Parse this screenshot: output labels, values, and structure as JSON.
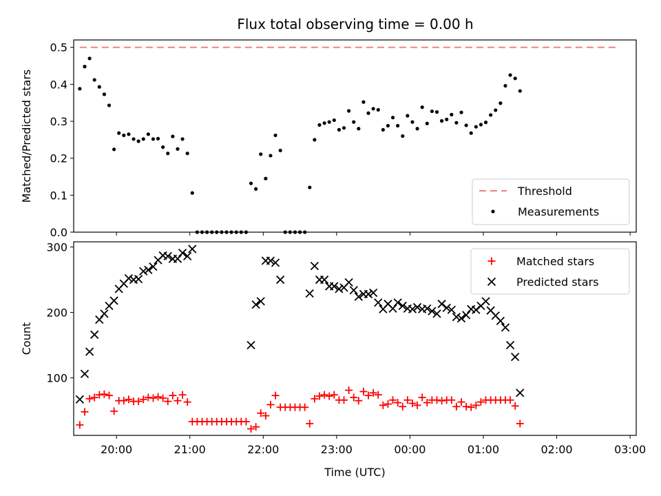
{
  "title": "Flux total observing time = 0.00 h",
  "chart_data": [
    {
      "type": "scatter",
      "ylabel": "Matched/Predicted stars",
      "ylim": [
        0,
        0.52
      ],
      "yticks": [
        0.0,
        0.1,
        0.2,
        0.3,
        0.4,
        0.5
      ],
      "ytick_labels": [
        "0.0",
        "0.1",
        "0.2",
        "0.3",
        "0.4",
        "0.5"
      ],
      "xlim": [
        "19:25",
        "03:05"
      ],
      "legend_position": "lower-right",
      "threshold": {
        "name": "Threshold",
        "value": 0.5,
        "x": [
          "19:30",
          "02:50"
        ],
        "color": "#f28080"
      },
      "series": [
        {
          "name": "Measurements",
          "color": "#000000",
          "points": [
            [
              "19:30",
              0.388
            ],
            [
              "19:34",
              0.448
            ],
            [
              "19:38",
              0.47
            ],
            [
              "19:42",
              0.412
            ],
            [
              "19:46",
              0.393
            ],
            [
              "19:50",
              0.373
            ],
            [
              "19:54",
              0.343
            ],
            [
              "19:58",
              0.224
            ],
            [
              "20:02",
              0.268
            ],
            [
              "20:06",
              0.262
            ],
            [
              "20:10",
              0.265
            ],
            [
              "20:14",
              0.252
            ],
            [
              "20:18",
              0.246
            ],
            [
              "20:22",
              0.252
            ],
            [
              "20:26",
              0.265
            ],
            [
              "20:30",
              0.252
            ],
            [
              "20:34",
              0.253
            ],
            [
              "20:38",
              0.23
            ],
            [
              "20:42",
              0.213
            ],
            [
              "20:46",
              0.259
            ],
            [
              "20:50",
              0.225
            ],
            [
              "20:54",
              0.252
            ],
            [
              "20:58",
              0.213
            ],
            [
              "21:02",
              0.106
            ],
            [
              "21:06",
              0.0
            ],
            [
              "21:10",
              0.0
            ],
            [
              "21:14",
              0.0
            ],
            [
              "21:18",
              0.0
            ],
            [
              "21:22",
              0.0
            ],
            [
              "21:26",
              0.0
            ],
            [
              "21:30",
              0.0
            ],
            [
              "21:34",
              0.0
            ],
            [
              "21:38",
              0.0
            ],
            [
              "21:42",
              0.0
            ],
            [
              "21:46",
              0.0
            ],
            [
              "21:50",
              0.132
            ],
            [
              "21:54",
              0.117
            ],
            [
              "21:58",
              0.211
            ],
            [
              "22:02",
              0.145
            ],
            [
              "22:06",
              0.207
            ],
            [
              "22:10",
              0.262
            ],
            [
              "22:14",
              0.221
            ],
            [
              "22:18",
              0.0
            ],
            [
              "22:22",
              0.0
            ],
            [
              "22:26",
              0.0
            ],
            [
              "22:30",
              0.0
            ],
            [
              "22:34",
              0.0
            ],
            [
              "22:38",
              0.121
            ],
            [
              "22:42",
              0.25
            ],
            [
              "22:46",
              0.29
            ],
            [
              "22:50",
              0.295
            ],
            [
              "22:54",
              0.298
            ],
            [
              "22:58",
              0.303
            ],
            [
              "23:02",
              0.277
            ],
            [
              "23:06",
              0.282
            ],
            [
              "23:10",
              0.328
            ],
            [
              "23:14",
              0.298
            ],
            [
              "23:18",
              0.28
            ],
            [
              "23:22",
              0.352
            ],
            [
              "23:26",
              0.322
            ],
            [
              "23:30",
              0.334
            ],
            [
              "23:34",
              0.331
            ],
            [
              "23:38",
              0.277
            ],
            [
              "23:42",
              0.288
            ],
            [
              "23:46",
              0.31
            ],
            [
              "23:50",
              0.288
            ],
            [
              "23:54",
              0.26
            ],
            [
              "23:58",
              0.315
            ],
            [
              "00:02",
              0.298
            ],
            [
              "00:06",
              0.28
            ],
            [
              "00:10",
              0.338
            ],
            [
              "00:14",
              0.294
            ],
            [
              "00:18",
              0.327
            ],
            [
              "00:22",
              0.325
            ],
            [
              "00:26",
              0.301
            ],
            [
              "00:30",
              0.305
            ],
            [
              "00:34",
              0.318
            ],
            [
              "00:38",
              0.296
            ],
            [
              "00:42",
              0.324
            ],
            [
              "00:46",
              0.289
            ],
            [
              "00:50",
              0.268
            ],
            [
              "00:54",
              0.285
            ],
            [
              "00:58",
              0.291
            ],
            [
              "01:02",
              0.297
            ],
            [
              "01:06",
              0.317
            ],
            [
              "01:10",
              0.33
            ],
            [
              "01:14",
              0.349
            ],
            [
              "01:18",
              0.396
            ],
            [
              "01:22",
              0.425
            ],
            [
              "01:26",
              0.416
            ],
            [
              "01:30",
              0.382
            ]
          ]
        }
      ]
    },
    {
      "type": "scatter",
      "xlabel": "Time (UTC)",
      "ylabel": "Count",
      "ylim": [
        12,
        308
      ],
      "yticks": [
        100,
        200,
        300
      ],
      "ytick_labels": [
        "100",
        "200",
        "300"
      ],
      "xlim": [
        "19:25",
        "03:05"
      ],
      "xticks": [
        "20:00",
        "21:00",
        "22:00",
        "23:00",
        "00:00",
        "01:00",
        "02:00",
        "03:00"
      ],
      "xtick_labels": [
        "20:00",
        "21:00",
        "22:00",
        "23:00",
        "00:00",
        "01:00",
        "02:00",
        "03:00"
      ],
      "legend_position": "upper-right",
      "series": [
        {
          "name": "Matched stars",
          "color": "#ff0000",
          "marker": "+",
          "points": [
            [
              "19:30",
              28
            ],
            [
              "19:34",
              48
            ],
            [
              "19:38",
              68
            ],
            [
              "19:42",
              70
            ],
            [
              "19:46",
              74
            ],
            [
              "19:50",
              75
            ],
            [
              "19:54",
              73
            ],
            [
              "19:58",
              49
            ],
            [
              "20:02",
              65
            ],
            [
              "20:06",
              65
            ],
            [
              "20:10",
              67
            ],
            [
              "20:14",
              64
            ],
            [
              "20:18",
              64
            ],
            [
              "20:22",
              67
            ],
            [
              "20:26",
              70
            ],
            [
              "20:30",
              69
            ],
            [
              "20:34",
              71
            ],
            [
              "20:38",
              69
            ],
            [
              "20:42",
              64
            ],
            [
              "20:46",
              73
            ],
            [
              "20:50",
              65
            ],
            [
              "20:54",
              74
            ],
            [
              "20:58",
              63
            ],
            [
              "21:02",
              33
            ],
            [
              "21:06",
              33
            ],
            [
              "21:10",
              33
            ],
            [
              "21:14",
              33
            ],
            [
              "21:18",
              33
            ],
            [
              "21:22",
              33
            ],
            [
              "21:26",
              33
            ],
            [
              "21:30",
              33
            ],
            [
              "21:34",
              33
            ],
            [
              "21:38",
              33
            ],
            [
              "21:42",
              33
            ],
            [
              "21:46",
              33
            ],
            [
              "21:50",
              22
            ],
            [
              "21:54",
              25
            ],
            [
              "21:58",
              46
            ],
            [
              "22:02",
              42
            ],
            [
              "22:06",
              59
            ],
            [
              "22:10",
              73
            ],
            [
              "22:14",
              55
            ],
            [
              "22:18",
              55
            ],
            [
              "22:22",
              55
            ],
            [
              "22:26",
              55
            ],
            [
              "22:30",
              55
            ],
            [
              "22:34",
              55
            ],
            [
              "22:38",
              30
            ],
            [
              "22:42",
              68
            ],
            [
              "22:46",
              72
            ],
            [
              "22:50",
              74
            ],
            [
              "22:54",
              72
            ],
            [
              "22:58",
              74
            ],
            [
              "23:02",
              66
            ],
            [
              "23:06",
              66
            ],
            [
              "23:10",
              81
            ],
            [
              "23:14",
              70
            ],
            [
              "23:18",
              65
            ],
            [
              "23:22",
              79
            ],
            [
              "23:26",
              73
            ],
            [
              "23:30",
              77
            ],
            [
              "23:34",
              74
            ],
            [
              "23:38",
              58
            ],
            [
              "23:42",
              60
            ],
            [
              "23:46",
              66
            ],
            [
              "23:50",
              62
            ],
            [
              "23:54",
              56
            ],
            [
              "23:58",
              66
            ],
            [
              "00:02",
              61
            ],
            [
              "00:06",
              58
            ],
            [
              "00:10",
              70
            ],
            [
              "00:14",
              62
            ],
            [
              "00:18",
              66
            ],
            [
              "00:22",
              66
            ],
            [
              "00:26",
              65
            ],
            [
              "00:30",
              66
            ],
            [
              "00:34",
              66
            ],
            [
              "00:38",
              56
            ],
            [
              "00:42",
              63
            ],
            [
              "00:46",
              56
            ],
            [
              "00:50",
              55
            ],
            [
              "00:54",
              58
            ],
            [
              "00:58",
              63
            ],
            [
              "01:02",
              66
            ],
            [
              "01:06",
              66
            ],
            [
              "01:10",
              66
            ],
            [
              "01:14",
              66
            ],
            [
              "01:18",
              66
            ],
            [
              "01:22",
              66
            ],
            [
              "01:26",
              57
            ],
            [
              "01:30",
              30
            ]
          ]
        },
        {
          "name": "Predicted stars",
          "color": "#000000",
          "marker": "x",
          "points": [
            [
              "19:30",
              67
            ],
            [
              "19:34",
              106
            ],
            [
              "19:38",
              140
            ],
            [
              "19:42",
              166
            ],
            [
              "19:46",
              189
            ],
            [
              "19:50",
              198
            ],
            [
              "19:54",
              210
            ],
            [
              "19:58",
              218
            ],
            [
              "20:02",
              236
            ],
            [
              "20:06",
              244
            ],
            [
              "20:10",
              252
            ],
            [
              "20:14",
              250
            ],
            [
              "20:18",
              251
            ],
            [
              "20:22",
              263
            ],
            [
              "20:26",
              265
            ],
            [
              "20:30",
              270
            ],
            [
              "20:34",
              280
            ],
            [
              "20:38",
              287
            ],
            [
              "20:42",
              286
            ],
            [
              "20:46",
              282
            ],
            [
              "20:50",
              282
            ],
            [
              "20:54",
              291
            ],
            [
              "20:58",
              286
            ],
            [
              "21:02",
              297
            ],
            [
              "21:50",
              150
            ],
            [
              "21:54",
              212
            ],
            [
              "21:58",
              217
            ],
            [
              "22:02",
              279
            ],
            [
              "22:06",
              279
            ],
            [
              "22:10",
              276
            ],
            [
              "22:14",
              250
            ],
            [
              "22:38",
              229
            ],
            [
              "22:42",
              271
            ],
            [
              "22:46",
              250
            ],
            [
              "22:50",
              250
            ],
            [
              "22:54",
              240
            ],
            [
              "22:58",
              240
            ],
            [
              "23:02",
              236
            ],
            [
              "23:06",
              238
            ],
            [
              "23:10",
              246
            ],
            [
              "23:14",
              234
            ],
            [
              "23:18",
              224
            ],
            [
              "23:22",
              228
            ],
            [
              "23:26",
              228
            ],
            [
              "23:30",
              230
            ],
            [
              "23:34",
              215
            ],
            [
              "23:38",
              205
            ],
            [
              "23:42",
              213
            ],
            [
              "23:46",
              206
            ],
            [
              "23:50",
              215
            ],
            [
              "23:54",
              210
            ],
            [
              "23:58",
              206
            ],
            [
              "00:02",
              205
            ],
            [
              "00:06",
              208
            ],
            [
              "00:10",
              205
            ],
            [
              "00:14",
              206
            ],
            [
              "00:18",
              202
            ],
            [
              "00:22",
              198
            ],
            [
              "00:26",
              213
            ],
            [
              "00:30",
              207
            ],
            [
              "00:34",
              204
            ],
            [
              "00:38",
              193
            ],
            [
              "00:42",
              191
            ],
            [
              "00:46",
              196
            ],
            [
              "00:50",
              205
            ],
            [
              "00:54",
              204
            ],
            [
              "00:58",
              210
            ],
            [
              "01:02",
              217
            ],
            [
              "01:06",
              203
            ],
            [
              "01:10",
              195
            ],
            [
              "01:14",
              187
            ],
            [
              "01:18",
              177
            ],
            [
              "01:22",
              150
            ],
            [
              "01:26",
              132
            ],
            [
              "01:30",
              77
            ]
          ]
        }
      ]
    }
  ]
}
